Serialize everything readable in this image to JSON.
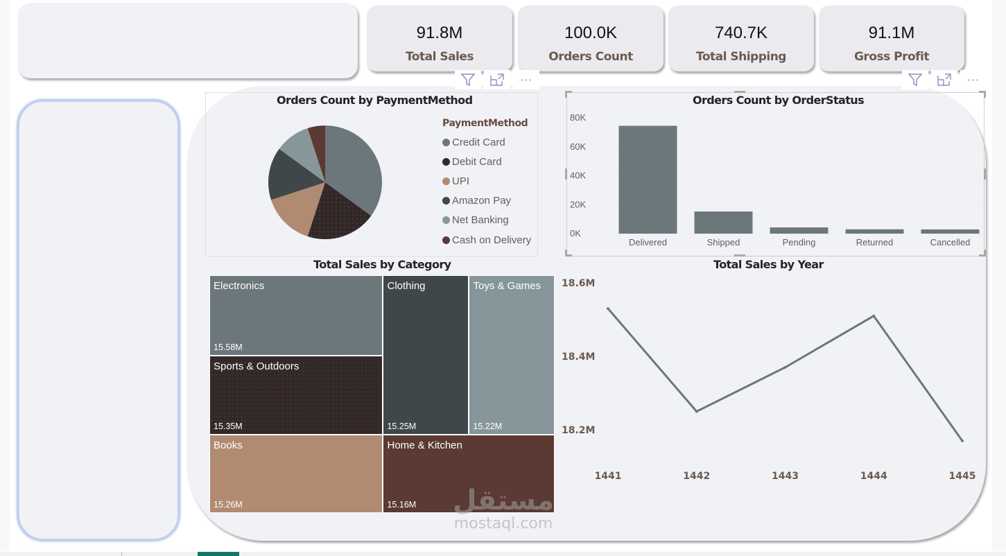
{
  "kpis": [
    {
      "value": "91.8M",
      "label": "Total Sales"
    },
    {
      "value": "100.0K",
      "label": "Orders Count"
    },
    {
      "value": "740.7K",
      "label": "Total Shipping"
    },
    {
      "value": "91.1M",
      "label": "Gross Profit"
    }
  ],
  "visual_header": {
    "filter_icon": "filter-icon",
    "focus_icon": "focus-mode-icon",
    "more_icon": "more-options-icon",
    "filter_glyph": "⛛",
    "focus_glyph": "⤢",
    "more_glyph": "···"
  },
  "colors": {
    "credit_card": "#6b777b",
    "debit_card": "#332828",
    "upi": "#b08b72",
    "amazon_pay": "#3f4749",
    "net_banking": "#87969a",
    "cash_on_delivery": "#5b3a33",
    "bar": "#6b777b",
    "line": "#6b777b",
    "panel_bg": "#f1f2f6"
  },
  "watermark": {
    "arabic": "مستقل",
    "latin": "mostaql.com"
  },
  "chart_data": [
    {
      "type": "pie",
      "title": "Orders Count by PaymentMethod",
      "legend_title": "PaymentMethod",
      "legend_position": "right",
      "categories": [
        "Credit Card",
        "Debit Card",
        "UPI",
        "Amazon Pay",
        "Net Banking",
        "Cash on Delivery"
      ],
      "values": [
        35,
        20,
        15,
        15,
        10,
        5
      ],
      "colors": [
        "#6b777b",
        "#332828",
        "#b08b72",
        "#3f4749",
        "#87969a",
        "#5b3a33"
      ],
      "unit": "percent of orders (approx.)"
    },
    {
      "type": "bar",
      "title": "Orders Count by OrderStatus",
      "categories": [
        "Delivered",
        "Shipped",
        "Pending",
        "Returned",
        "Cancelled"
      ],
      "values": [
        74500,
        15300,
        4300,
        3000,
        2900
      ],
      "ylim": [
        0,
        80000
      ],
      "yticks": [
        0,
        20000,
        40000,
        60000,
        80000
      ],
      "ytick_labels": [
        "0K",
        "20K",
        "40K",
        "60K",
        "80K"
      ],
      "grid": true,
      "xlabel": "",
      "ylabel": ""
    },
    {
      "type": "treemap",
      "title": "Total Sales by Category",
      "categories": [
        "Electronics",
        "Sports & Outdoors",
        "Clothing",
        "Toys & Games",
        "Books",
        "Home & Kitchen"
      ],
      "values": [
        15.58,
        15.35,
        15.25,
        15.22,
        15.26,
        15.16
      ],
      "value_labels": [
        "15.58M",
        "15.35M",
        "15.25M",
        "15.22M",
        "15.26M",
        "15.16M"
      ],
      "colors": [
        "#6b777b",
        "#332828",
        "#3f4749",
        "#87969a",
        "#b08b72",
        "#5b3a33"
      ],
      "unit": "M"
    },
    {
      "type": "line",
      "title": "Total Sales by Year",
      "x": [
        "1441",
        "1442",
        "1443",
        "1444",
        "1445"
      ],
      "values": [
        18.53,
        18.25,
        18.37,
        18.51,
        18.17
      ],
      "unit": "M",
      "ylim": [
        18.1,
        18.6
      ],
      "yticks": [
        18.2,
        18.4,
        18.6
      ],
      "ytick_labels": [
        "18.2M",
        "18.4M",
        "18.6M"
      ],
      "grid": false,
      "xlabel": "",
      "ylabel": ""
    }
  ]
}
